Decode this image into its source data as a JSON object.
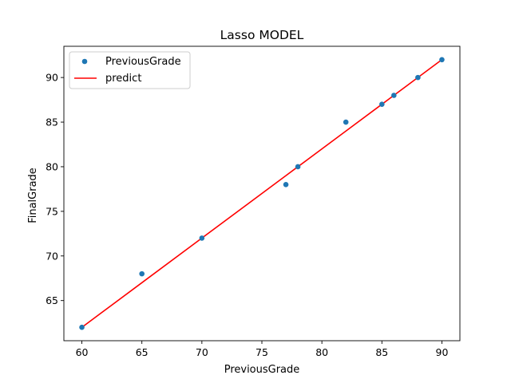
{
  "chart_data": {
    "type": "scatter",
    "title": "Lasso MODEL",
    "xlabel": "PreviousGrade",
    "ylabel": "FinalGrade",
    "xlim": [
      58.5,
      91.5
    ],
    "ylim": [
      60.5,
      93.5
    ],
    "xticks": [
      60,
      65,
      70,
      75,
      80,
      85,
      90
    ],
    "yticks": [
      65,
      70,
      75,
      80,
      85,
      90
    ],
    "grid": false,
    "legend_position": "top-left",
    "series": [
      {
        "name": "PreviousGrade",
        "kind": "scatter",
        "color": "#1f77b4",
        "points": [
          {
            "x": 60,
            "y": 62
          },
          {
            "x": 65,
            "y": 68
          },
          {
            "x": 70,
            "y": 72
          },
          {
            "x": 77,
            "y": 78
          },
          {
            "x": 78,
            "y": 80
          },
          {
            "x": 82,
            "y": 85
          },
          {
            "x": 85,
            "y": 87
          },
          {
            "x": 86,
            "y": 88
          },
          {
            "x": 88,
            "y": 90
          },
          {
            "x": 90,
            "y": 92
          }
        ]
      },
      {
        "name": "predict",
        "kind": "line",
        "color": "#ff0000",
        "points": [
          {
            "x": 60,
            "y": 62
          },
          {
            "x": 65,
            "y": 67
          },
          {
            "x": 70,
            "y": 72
          },
          {
            "x": 77,
            "y": 79
          },
          {
            "x": 78,
            "y": 80
          },
          {
            "x": 82,
            "y": 84
          },
          {
            "x": 85,
            "y": 87
          },
          {
            "x": 86,
            "y": 88
          },
          {
            "x": 88,
            "y": 90
          },
          {
            "x": 90,
            "y": 92
          }
        ]
      }
    ]
  }
}
